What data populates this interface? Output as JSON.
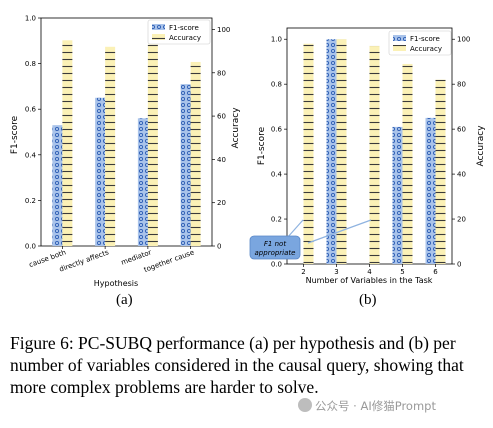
{
  "figure": {
    "panel_a_label": "(a)",
    "panel_b_label": "(b)",
    "caption": "Figure 6: PC-SUBQ performance (a) per hypothesis and (b) per number of variables considered in the causal query, showing that more complex problems are harder to solve.",
    "watermark": "公众号 · AI修猫Prompt"
  },
  "colors": {
    "f1_fill": "#a9c3ea",
    "f1_hatch": "#2f5fb5",
    "acc_fill": "#fbf1b6",
    "acc_hatch": "#3a3a3a",
    "annotation_fill": "#7aa6df"
  },
  "chart_data": [
    {
      "type": "bar",
      "panel": "(a)",
      "categories": [
        "cause both",
        "directly affects",
        "mediator",
        "together cause"
      ],
      "xlabel": "Hypothesis",
      "ylabel": "F1-score",
      "y2label": "Accuracy",
      "ylim": [
        0,
        1.0
      ],
      "y2lim": [
        0,
        105.3
      ],
      "yticks": [
        "0.0",
        "0.2",
        "0.4",
        "0.6",
        "0.8",
        "1.0"
      ],
      "y2ticks": [
        "0",
        "20",
        "40",
        "60",
        "80",
        "100"
      ],
      "legend_position": "top-right",
      "series": [
        {
          "name": "F1-score",
          "axis": "left",
          "values": [
            0.53,
            0.65,
            0.56,
            0.71
          ]
        },
        {
          "name": "Accuracy",
          "axis": "right",
          "values": [
            95,
            92,
            93,
            85
          ]
        }
      ]
    },
    {
      "type": "bar",
      "panel": "(b)",
      "categories": [
        "2",
        "3",
        "4",
        "5",
        "6"
      ],
      "xlabel": "Number of Variables in the Task",
      "ylabel": "F1-score",
      "y2label": "Accuracy",
      "ylim": [
        0,
        1.05
      ],
      "y2lim": [
        0,
        105
      ],
      "yticks": [
        "0.0",
        "0.2",
        "0.4",
        "0.6",
        "0.8",
        "1.0"
      ],
      "y2ticks": [
        "0",
        "20",
        "40",
        "60",
        "80",
        "100"
      ],
      "legend_position": "top-right",
      "annotation": "F1 not appropriate",
      "series": [
        {
          "name": "F1-score",
          "axis": "left",
          "values": [
            null,
            1.0,
            null,
            0.61,
            0.65
          ]
        },
        {
          "name": "Accuracy",
          "axis": "right",
          "values": [
            98,
            100,
            97,
            89,
            82
          ]
        }
      ]
    }
  ]
}
